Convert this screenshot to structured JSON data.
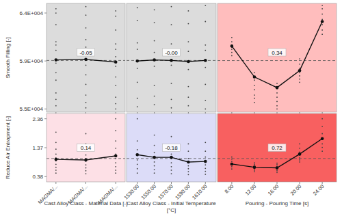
{
  "chart_data": [
    {
      "type": "line",
      "ylabel": "Smooth Filling [-]",
      "tick_labels": "y",
      "categories": [
        null,
        null,
        null
      ],
      "values": [
        59500,
        59550,
        59300
      ],
      "mean": 59450,
      "annotation": "-0.05",
      "points": [
        [
          64300,
          63900,
          62800,
          61200,
          60900,
          60400,
          59200,
          58300,
          57600,
          56400,
          55800,
          55200
        ],
        [
          64500,
          63700,
          62500,
          61400,
          60700,
          60100,
          59000,
          58100,
          57200,
          56200,
          55500,
          55000
        ],
        [
          64100,
          63600,
          62300,
          61000,
          60500,
          59800,
          58900,
          57900,
          57100,
          56000,
          55400,
          54900
        ]
      ],
      "ylim": [
        54600,
        64800
      ],
      "yticks": [
        {
          "value": 54900,
          "label": "5.5E+004"
        },
        {
          "value": 59400,
          "label": "5.9E+004"
        },
        {
          "value": 63900,
          "label": "6.4E+004"
        }
      ]
    },
    {
      "type": "line",
      "tick_labels": false,
      "categories": [
        null,
        null,
        null,
        null,
        null
      ],
      "values": [
        59400,
        59500,
        59450,
        59350,
        59450
      ],
      "mean": 59450,
      "annotation": "-0.00",
      "points": [
        [
          64400,
          63200,
          61100,
          60500,
          58700,
          57400,
          55900,
          55100
        ],
        [
          64200,
          63000,
          61300,
          60200,
          58900,
          57100,
          56100,
          55300
        ],
        [
          64500,
          62800,
          61000,
          60100,
          59000,
          57300,
          55800,
          55000
        ],
        [
          64100,
          62900,
          61200,
          60300,
          58600,
          57000,
          56000,
          55200
        ],
        [
          64600,
          63100,
          60900,
          60400,
          58800,
          57200,
          55700,
          54900
        ]
      ],
      "ylim": [
        54600,
        64800
      ]
    },
    {
      "type": "line",
      "tick_labels": false,
      "categories": [
        null,
        null,
        null,
        null,
        null
      ],
      "values": [
        60800,
        57900,
        56900,
        58500,
        63100
      ],
      "mean": 59440,
      "annotation": "0.34",
      "points": [
        [
          61600,
          61200,
          60900,
          60700,
          60500,
          60200,
          59900
        ],
        [
          58300,
          57600,
          57100,
          56700,
          56200,
          55900,
          55500
        ],
        [
          57300,
          56800,
          56400,
          56000,
          55600,
          55200,
          54900
        ],
        [
          59600,
          59100,
          58700,
          58300,
          58000,
          57700,
          57400
        ],
        [
          64600,
          64300,
          63800,
          63300,
          62800,
          62300,
          61900
        ]
      ],
      "ylim": [
        54600,
        64800
      ]
    },
    {
      "type": "line",
      "ylabel": "Reduce Air Entrapment [-]",
      "xlabel": "Cast Alloy Class - Material Data [-]",
      "tick_labels": true,
      "categories": [
        "MAGMA/...",
        "MAGMA/...",
        "MAGMA/..."
      ],
      "values": [
        0.97,
        0.95,
        1.09
      ],
      "mean": 1.0,
      "annotation": "0.14",
      "points": [
        [
          1.9,
          1.55,
          1.32,
          1.15,
          1.02,
          0.92,
          0.8,
          0.7,
          0.6,
          0.5
        ],
        [
          1.85,
          1.5,
          1.3,
          1.12,
          1.0,
          0.9,
          0.78,
          0.68,
          0.58,
          0.48
        ],
        [
          2.36,
          1.95,
          1.6,
          1.35,
          1.15,
          1.0,
          0.85,
          0.72,
          0.6,
          0.5
        ]
      ],
      "ylim": [
        0.2,
        2.54
      ],
      "yticks": [
        0.38,
        1.37,
        2.36
      ]
    },
    {
      "type": "line",
      "xlabel": "Cast Alloy Class - Initial Temperature\n[°C]",
      "tick_labels": "x",
      "categories": [
        "1530.00",
        "1550.00",
        "1570.00",
        "1590.00",
        "1610.00"
      ],
      "values": [
        1.13,
        1.04,
        1.04,
        0.88,
        0.9
      ],
      "mean": 1.0,
      "annotation": "-0.18",
      "points": [
        [
          2.36,
          1.6,
          1.3,
          1.1,
          0.95,
          0.8,
          0.65,
          0.5
        ],
        [
          1.8,
          1.45,
          1.2,
          1.0,
          0.88,
          0.75,
          0.62,
          0.5
        ],
        [
          1.75,
          1.4,
          1.15,
          1.0,
          0.85,
          0.72,
          0.6,
          0.48
        ],
        [
          1.5,
          1.25,
          1.0,
          0.88,
          0.75,
          0.65,
          0.55,
          0.45
        ],
        [
          1.55,
          1.25,
          1.05,
          0.9,
          0.78,
          0.66,
          0.56,
          0.46
        ]
      ],
      "ylim": [
        0.2,
        2.54
      ]
    },
    {
      "type": "line",
      "xlabel": "Pouring - Pouring Time [s]",
      "tick_labels": "x",
      "categories": [
        "8.00",
        "12.00",
        "16.00",
        "20.00",
        "24.00"
      ],
      "values": [
        0.81,
        0.7,
        0.68,
        1.15,
        1.68
      ],
      "mean": 1.0,
      "annotation": "0.72",
      "points": [
        [
          1.05,
          0.98,
          0.9,
          0.84,
          0.78,
          0.72,
          0.64
        ],
        [
          0.85,
          0.8,
          0.75,
          0.7,
          0.65,
          0.6,
          0.55
        ],
        [
          0.84,
          0.79,
          0.73,
          0.68,
          0.63,
          0.58,
          0.52
        ],
        [
          1.5,
          1.35,
          1.22,
          1.12,
          1.02,
          0.95,
          0.88
        ],
        [
          2.36,
          2.1,
          1.85,
          1.65,
          1.5,
          1.38,
          1.25
        ]
      ],
      "ylim": [
        0.2,
        2.54
      ]
    }
  ]
}
